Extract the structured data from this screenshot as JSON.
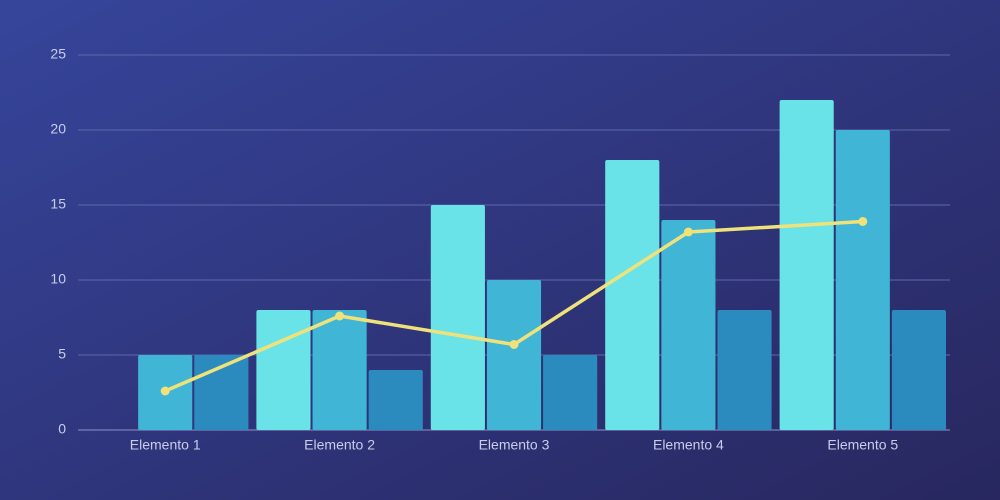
{
  "chart_data": {
    "type": "bar-line",
    "categories": [
      "Elemento 1",
      "Elemento 2",
      "Elemento 3",
      "Elemento 4",
      "Elemento 5"
    ],
    "series": [
      {
        "color": "#6ae3e8",
        "values": [
          0,
          8,
          15,
          18,
          22
        ]
      },
      {
        "color": "#40b5d6",
        "values": [
          5,
          8,
          10,
          14,
          20
        ]
      },
      {
        "color": "#2b8bbf",
        "values": [
          5,
          4,
          5,
          8,
          8
        ]
      },
      {
        "color": "#f0e27a",
        "type": "line",
        "values": [
          2.6,
          7.6,
          5.7,
          13.2,
          13.9
        ]
      }
    ],
    "ylim": [
      0,
      25
    ],
    "yticks": [
      0,
      5,
      10,
      15,
      20,
      25
    ],
    "grid": true
  }
}
